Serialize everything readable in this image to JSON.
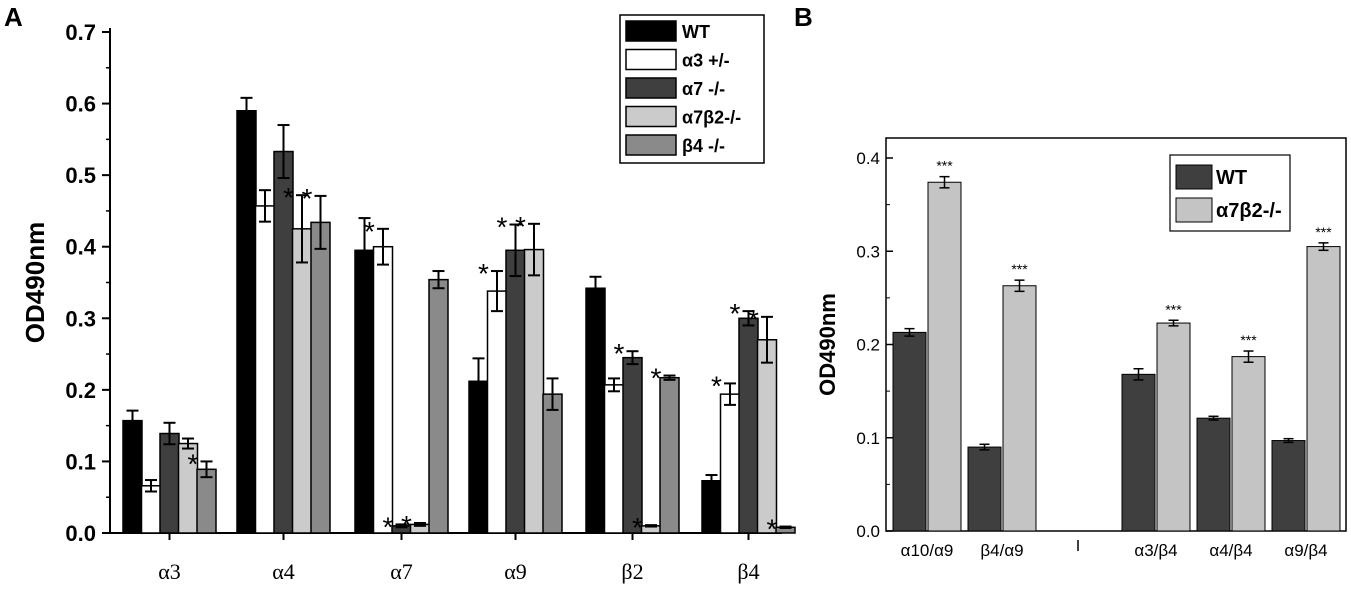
{
  "chart_data": [
    {
      "panel": "A",
      "type": "bar",
      "title": "",
      "xlabel": "",
      "ylabel": "OD490nm",
      "ylim": [
        0,
        0.7
      ],
      "yticks": [
        "0.0",
        "0.1",
        "0.2",
        "0.3",
        "0.4",
        "0.5",
        "0.6",
        "0.7"
      ],
      "categories": [
        "α3",
        "α4",
        "α7",
        "α9",
        "β2",
        "β4"
      ],
      "legend_position": "top-right",
      "series": [
        {
          "name": "WT",
          "color": "#000000",
          "values": [
            0.157,
            0.59,
            0.395,
            0.212,
            0.342,
            0.073
          ],
          "errors": [
            0.014,
            0.018,
            0.045,
            0.032,
            0.016,
            0.008
          ],
          "stars": [
            "",
            "",
            "",
            "",
            "",
            ""
          ]
        },
        {
          "name": "α3 +/-",
          "color": "#ffffff",
          "values": [
            0.066,
            0.457,
            0.4,
            0.338,
            0.207,
            0.194
          ],
          "errors": [
            0.008,
            0.022,
            0.025,
            0.028,
            0.009,
            0.015
          ],
          "stars": [
            "*",
            "*",
            "*",
            "*",
            "*",
            "*"
          ]
        },
        {
          "name": "α7 -/-",
          "color": "#3f3f3f",
          "values": [
            0.139,
            0.533,
            0.01,
            0.395,
            0.245,
            0.3
          ],
          "errors": [
            0.015,
            0.037,
            0.002,
            0.036,
            0.009,
            0.01
          ],
          "stars": [
            "",
            "",
            "*",
            "*",
            "*",
            "*"
          ]
        },
        {
          "name": "α7β2-/-",
          "color": "#cbcbcb",
          "values": [
            0.125,
            0.425,
            0.012,
            0.396,
            0.01,
            0.27
          ],
          "errors": [
            0.007,
            0.047,
            0.002,
            0.036,
            0.001,
            0.032
          ],
          "stars": [
            "",
            "*",
            "*",
            "*",
            "*",
            "*"
          ]
        },
        {
          "name": "β4 -/-",
          "color": "#8a8a8a",
          "values": [
            0.089,
            0.434,
            0.354,
            0.194,
            0.217,
            0.008
          ],
          "errors": [
            0.011,
            0.037,
            0.012,
            0.022,
            0.003,
            0.001
          ],
          "stars": [
            "*",
            "*",
            "",
            "",
            "*",
            "*"
          ]
        }
      ]
    },
    {
      "panel": "B",
      "type": "bar",
      "title": "",
      "xlabel": "",
      "ylabel": "OD490nm",
      "ylim": [
        0,
        0.4
      ],
      "yticks": [
        "0.0",
        "0.1",
        "0.2",
        "0.3",
        "0.4"
      ],
      "categories": [
        "α10/α9",
        "β4/α9",
        "α3/β4",
        "α4/β4",
        "α9/β4"
      ],
      "group_separator_after": 1,
      "legend_position": "top-right",
      "series": [
        {
          "name": "WT",
          "color": "#3f3f3f",
          "values": [
            0.213,
            0.09,
            0.168,
            0.121,
            0.097
          ],
          "errors": [
            0.004,
            0.003,
            0.006,
            0.002,
            0.002
          ],
          "stars": [
            "",
            "",
            "",
            "",
            ""
          ]
        },
        {
          "name": "α7β2-/-",
          "color": "#c4c4c4",
          "values": [
            0.374,
            0.263,
            0.223,
            0.187,
            0.305
          ],
          "errors": [
            0.006,
            0.006,
            0.003,
            0.006,
            0.004
          ],
          "stars": [
            "***",
            "***",
            "***",
            "***",
            "***"
          ]
        }
      ]
    }
  ],
  "panel_labels": [
    "A",
    "B"
  ]
}
